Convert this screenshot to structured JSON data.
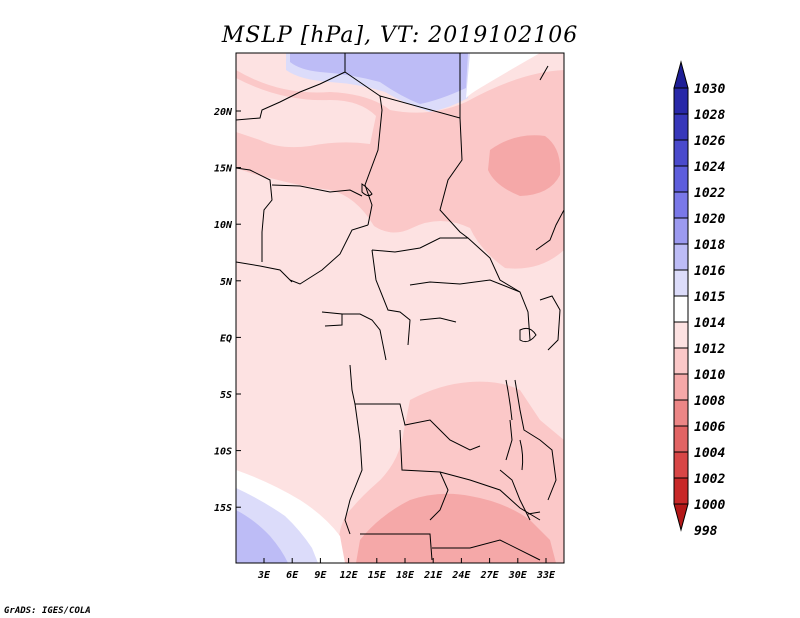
{
  "title": "MSLP [hPa], VT: 2019102106",
  "credit": "GrADS: IGES/COLA",
  "axes": {
    "lon_labels": [
      "3E",
      "6E",
      "9E",
      "12E",
      "15E",
      "18E",
      "21E",
      "24E",
      "27E",
      "30E",
      "33E"
    ],
    "lat_labels": [
      "20N",
      "15N",
      "10N",
      "5N",
      "EQ",
      "5S",
      "10S",
      "15S"
    ]
  },
  "colorbar": {
    "levels": [
      "1030",
      "1028",
      "1026",
      "1024",
      "1022",
      "1020",
      "1018",
      "1016",
      "1015",
      "1014",
      "1012",
      "1010",
      "1008",
      "1006",
      "1004",
      "1002",
      "1000",
      "998"
    ],
    "colors": [
      "#1e1e96",
      "#2828a8",
      "#3737ba",
      "#4a4acc",
      "#5e5edc",
      "#7a78e8",
      "#9c9af0",
      "#bdbcf6",
      "#dcdcfa",
      "#ffffff",
      "#fde2e2",
      "#fbc8c8",
      "#f5a8a8",
      "#ec8686",
      "#e26464",
      "#d84646",
      "#c82828",
      "#b41818"
    ]
  },
  "regions": {
    "north_blue": "#bdbcf6",
    "south_west_blue": "#bdbcf6",
    "light": "#fde2e2",
    "mid": "#fbc8c8",
    "dark": "#f5a8a8",
    "white": "#ffffff"
  }
}
